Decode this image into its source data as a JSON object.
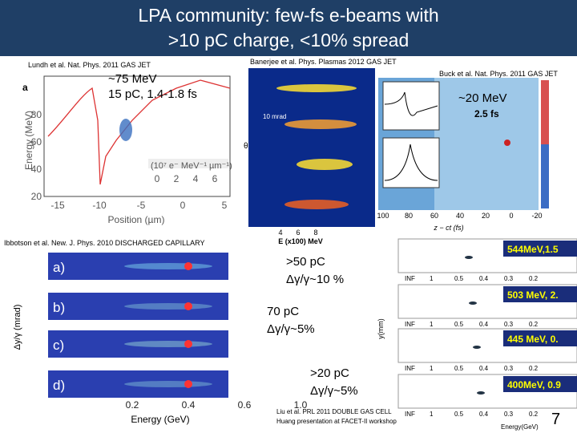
{
  "header": {
    "title_lines": [
      "LPA community: few-fs e-beams with",
      ">10 pC charge, <10% spread"
    ]
  },
  "captions": {
    "lundh": "Lundh et al. Nat. Phys. 2011 GAS JET",
    "banerjee": "Banerjee et al. Phys. Plasmas 2012 GAS JET",
    "buck": "Buck et al. Nat. Phys. 2011 GAS JET",
    "ibbotson": "Ibbotson et al. New. J. Phys. 2010 DISCHARGED CAPILLARY",
    "liu": "Liu et al. PRL 2011 DOUBLE GAS CELL",
    "huang": "Huang presentation at FACET-II workshop"
  },
  "annotations": {
    "lundh_energy": "~75 MeV",
    "lundh_charge": "15 pC, 1.4-1.8 fs",
    "buck_energy": "~20 MeV",
    "banerjee_charge": ">50 pC",
    "banerjee_spread": "Δγ/γ~10 %",
    "ibbotson_charge": "70 pC",
    "ibbotson_spread": "Δγ/γ~5%",
    "liu_charge": ">20 pC",
    "liu_spread": "Δγ/γ~5%"
  },
  "figures": {
    "lundh": {
      "panel": "a",
      "y_label": "Energy (MeV)",
      "x_label": "Position (µm)",
      "y_ticks": [
        "80",
        "60",
        "40",
        "20"
      ],
      "x_ticks": [
        "-15",
        "-10",
        "-5",
        "0",
        "5"
      ],
      "colorbar_label": "(10⁷ e⁻ MeV⁻¹ µm⁻¹)",
      "colorbar_ticks": [
        "0",
        "2",
        "4",
        "6"
      ]
    },
    "banerjee": {
      "x_label": "E (x100) MeV",
      "x_ticks": [
        "4",
        "6",
        "8"
      ],
      "scale": "10 mrad",
      "y_label": "θ"
    },
    "buck": {
      "duration": "2.5 fs",
      "x_label": "z − ct (fs)",
      "x_ticks": [
        "100",
        "80",
        "60",
        "40",
        "20",
        "0",
        "-20"
      ]
    },
    "ibbotson": {
      "panels": [
        "a)",
        "b)",
        "c)",
        "d)"
      ],
      "y_label": "Δy/γ (mrad)",
      "x_label": "Energy (GeV)",
      "x_ticks": [
        "0.2",
        "0.4",
        "0.6",
        "1.0"
      ]
    },
    "liu": {
      "labels": [
        "544MeV,1.5",
        "503 MeV, 2.",
        "445 MeV, 0.",
        "400MeV, 0.9"
      ],
      "y_label": "y(mm)",
      "x_label": "Energy(GeV)",
      "x_ticks": [
        "INF",
        "1",
        "0.5",
        "0.4",
        "0.3",
        "0.2"
      ]
    }
  },
  "page_number": "7"
}
